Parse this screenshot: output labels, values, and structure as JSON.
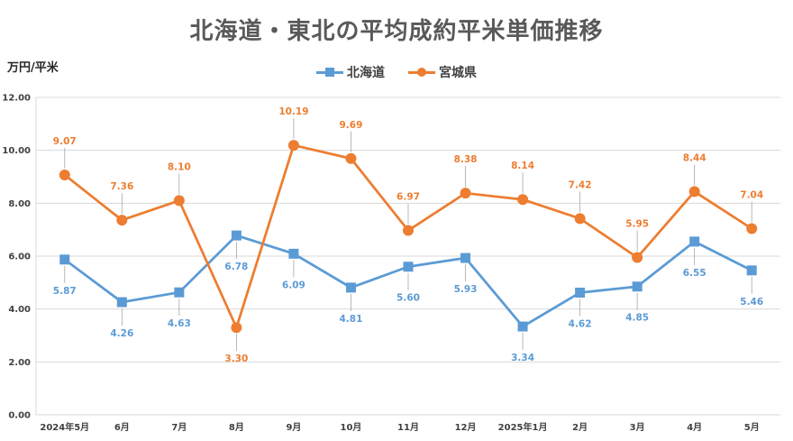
{
  "chart_data": {
    "type": "line",
    "title": "北海道・東北の平均成約平米単価推移",
    "ylabel": "万円/平米",
    "xlabel": "",
    "ylim": [
      0,
      12
    ],
    "yticks": [
      "0.00",
      "2.00",
      "4.00",
      "6.00",
      "8.00",
      "10.00",
      "12.00"
    ],
    "grid": true,
    "legend_position": "top",
    "categories": [
      "2024年5月",
      "6月",
      "7月",
      "8月",
      "9月",
      "10月",
      "11月",
      "12月",
      "2025年1月",
      "2月",
      "3月",
      "4月",
      "5月"
    ],
    "series": [
      {
        "name": "北海道",
        "color": "#5B9BD5",
        "marker": "square",
        "values": [
          5.87,
          4.26,
          4.63,
          6.78,
          6.09,
          4.81,
          5.6,
          5.93,
          3.34,
          4.62,
          4.85,
          6.55,
          5.46
        ],
        "labels": [
          "5.87",
          "4.26",
          "4.63",
          "6.78",
          "6.09",
          "4.81",
          "5.60",
          "5.93",
          "3.34",
          "4.62",
          "4.85",
          "6.55",
          "5.46"
        ]
      },
      {
        "name": "宮城県",
        "color": "#ED7D31",
        "marker": "circle",
        "values": [
          9.07,
          7.36,
          8.1,
          3.3,
          10.19,
          9.69,
          6.97,
          8.38,
          8.14,
          7.42,
          5.95,
          8.44,
          7.04
        ],
        "labels": [
          "9.07",
          "7.36",
          "8.10",
          "3.30",
          "10.19",
          "9.69",
          "6.97",
          "8.38",
          "8.14",
          "7.42",
          "5.95",
          "8.44",
          "7.04"
        ]
      }
    ]
  }
}
